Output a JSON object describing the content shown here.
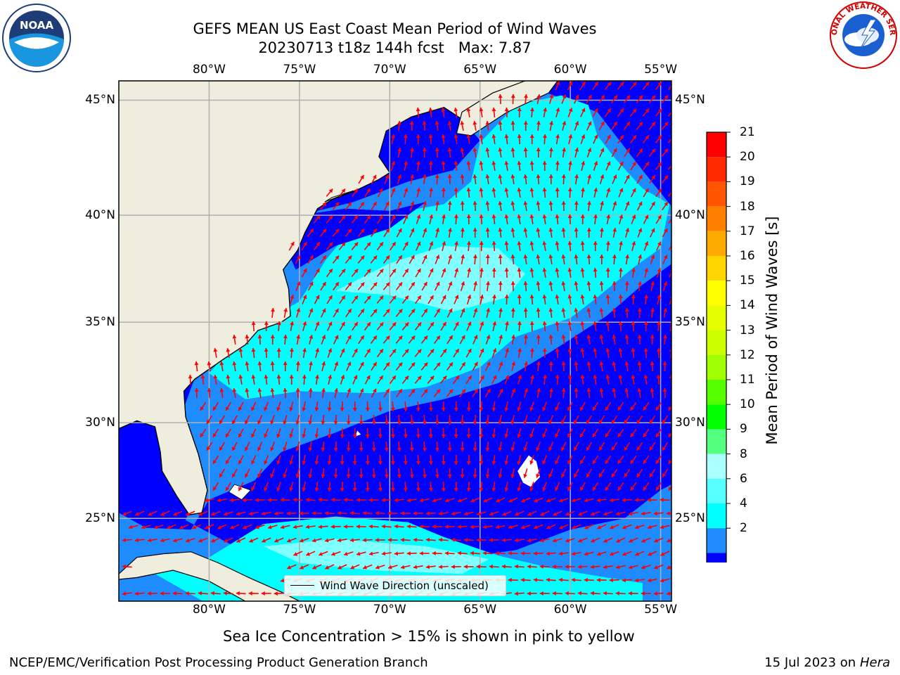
{
  "header": {
    "title_line1": "GEFS MEAN US East Coast Mean Period of Wind Waves",
    "title_line2": "20230713 t18z 144h fcst   Max: 7.87"
  },
  "logos": {
    "left": {
      "icon": "noaa-logo-icon",
      "text": "NOAA"
    },
    "right": {
      "icon": "national-weather-service-logo-icon",
      "text": "NATIONAL WEATHER SERVICE"
    }
  },
  "map": {
    "lon_ticks": [
      "80°W",
      "75°W",
      "70°W",
      "65°W",
      "60°W",
      "55°W"
    ],
    "lat_ticks": [
      "45°N",
      "40°N",
      "35°N",
      "30°N",
      "25°N"
    ],
    "lon_range": [
      -85,
      -54.4
    ],
    "lat_range": [
      20.5,
      45.8
    ],
    "colors": {
      "land": "#efedde",
      "level_2_4": "#0000ff",
      "level_4_6": "#1e8cff",
      "level_6_8": "#00ffff",
      "level_8_9": "#7fffff",
      "arrow": "#ff0000",
      "grid": "#b0b0b0"
    },
    "legend_label": "Wind Wave Direction (unscaled)"
  },
  "colorbar": {
    "label": "Mean Period of Wind Waves [s]",
    "ticks": [
      "21",
      "20",
      "19",
      "18",
      "17",
      "16",
      "15",
      "14",
      "13",
      "12",
      "11",
      "10",
      "9",
      "8",
      "6",
      "4",
      "2"
    ],
    "colors": [
      "#ff0000",
      "#ff2a00",
      "#ff5500",
      "#ff7f00",
      "#ffaa00",
      "#ffd400",
      "#ffff00",
      "#e6ff00",
      "#ccff00",
      "#a0ff00",
      "#55ff00",
      "#00ff00",
      "#55ff7f",
      "#aaffff",
      "#55ffff",
      "#00ffff",
      "#1e8cff",
      "#0000ff"
    ]
  },
  "note": "Sea Ice Concentration > 15% is shown in pink to yellow",
  "footer": {
    "left": "NCEP/EMC/Verification Post Processing Product Generation Branch",
    "date": "15 Jul 2023 on ",
    "machine": "Hera"
  }
}
